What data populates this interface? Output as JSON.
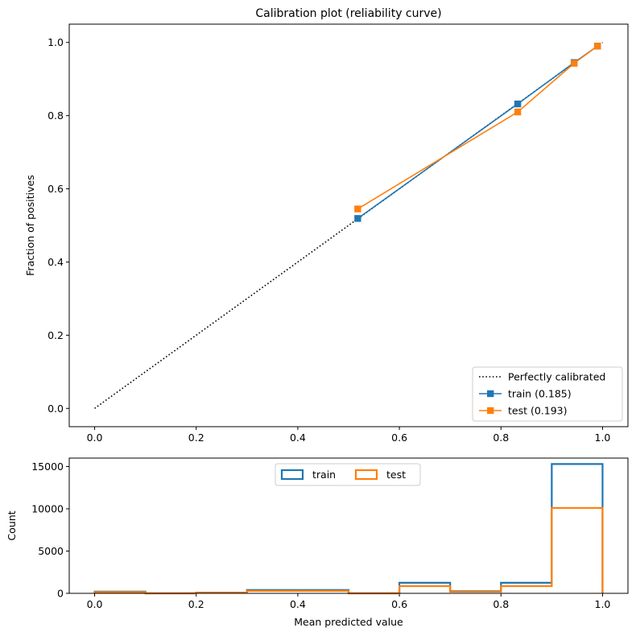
{
  "chart_data": [
    {
      "type": "line",
      "title": "Calibration plot (reliability curve)",
      "xlabel": "",
      "ylabel": "Fraction of positives",
      "xlim": [
        -0.05,
        1.05
      ],
      "ylim": [
        -0.05,
        1.05
      ],
      "xticks": [
        "0.0",
        "0.2",
        "0.4",
        "0.6",
        "0.8",
        "1.0"
      ],
      "yticks": [
        "0.0",
        "0.2",
        "0.4",
        "0.6",
        "0.8",
        "1.0"
      ],
      "grid": false,
      "legend": "lower-right",
      "series": [
        {
          "name": "Perfectly calibrated",
          "style": "dotted",
          "color": "#000000",
          "x": [
            0,
            1
          ],
          "y": [
            0,
            1
          ]
        },
        {
          "name": "train (0.185)",
          "style": "solid",
          "marker": "square",
          "color": "#1f77b4",
          "x": [
            0.518,
            0.833,
            0.944,
            0.99
          ],
          "y": [
            0.519,
            0.832,
            0.945,
            0.99
          ]
        },
        {
          "name": "test (0.193)",
          "style": "solid",
          "marker": "square",
          "color": "#ff7f0e",
          "x": [
            0.518,
            0.833,
            0.944,
            0.99
          ],
          "y": [
            0.545,
            0.81,
            0.943,
            0.99
          ]
        }
      ]
    },
    {
      "type": "histogram",
      "title": "",
      "xlabel": "Mean predicted value",
      "ylabel": "Count",
      "xlim": [
        -0.05,
        1.05
      ],
      "ylim": [
        0,
        16000
      ],
      "xticks": [
        "0.0",
        "0.2",
        "0.4",
        "0.6",
        "0.8",
        "1.0"
      ],
      "yticks": [
        "0",
        "5000",
        "10000",
        "15000"
      ],
      "grid": false,
      "legend": "upper-center",
      "bin_edges": [
        0.0,
        0.1,
        0.2,
        0.3,
        0.4,
        0.5,
        0.6,
        0.7,
        0.8,
        0.9,
        1.0
      ],
      "series": [
        {
          "name": "train",
          "color": "#1f77b4",
          "values": [
            200,
            0,
            80,
            400,
            400,
            0,
            1250,
            250,
            1250,
            15300
          ]
        },
        {
          "name": "test",
          "color": "#ff7f0e",
          "values": [
            150,
            0,
            60,
            300,
            300,
            0,
            850,
            200,
            850,
            10100
          ]
        }
      ]
    }
  ]
}
